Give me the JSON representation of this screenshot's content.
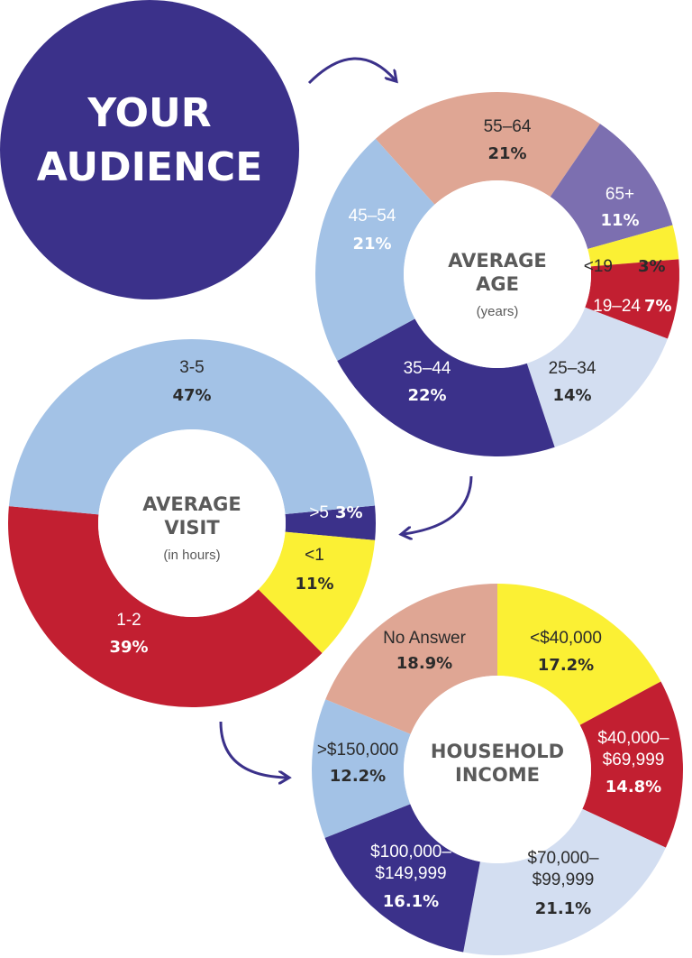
{
  "headline": {
    "line1": "YOUR",
    "line2": "AUDIENCE"
  },
  "colors": {
    "navy": "#3b318a",
    "lightblue": "#a3c2e6",
    "paleblue": "#d3def1",
    "salmon": "#dfa694",
    "purple": "#7c6fb0",
    "yellow": "#fbf034",
    "red": "#c21f31",
    "white": "#ffffff"
  },
  "chart_data": [
    {
      "type": "pie",
      "title": "AVERAGE AGE",
      "subtitle": "(years)",
      "unit": "%",
      "slices": [
        {
          "label": "55–64",
          "value": 21,
          "display": "21%",
          "color": "#dfa694",
          "text_color": "#2b2b2b",
          "pct_color": "#2b2b2b"
        },
        {
          "label": "65+",
          "value": 11,
          "display": "11%",
          "color": "#7c6fb0",
          "text_color": "#ffffff",
          "pct_color": "#ffffff"
        },
        {
          "label": "<19",
          "value": 3,
          "display": "3%",
          "color": "#fbf034",
          "text_color": "#2b2b2b",
          "pct_color": "#2b2b2b"
        },
        {
          "label": "19–24",
          "value": 7,
          "display": "7%",
          "color": "#c21f31",
          "text_color": "#ffffff",
          "pct_color": "#ffffff"
        },
        {
          "label": "25–34",
          "value": 14,
          "display": "14%",
          "color": "#d3def1",
          "text_color": "#2b2b2b",
          "pct_color": "#2b2b2b"
        },
        {
          "label": "35–44",
          "value": 22,
          "display": "22%",
          "color": "#3b318a",
          "text_color": "#ffffff",
          "pct_color": "#ffffff"
        },
        {
          "label": "45–54",
          "value": 21,
          "display": "21%",
          "color": "#a3c2e6",
          "text_color": "#ffffff",
          "pct_color": "#ffffff"
        }
      ]
    },
    {
      "type": "pie",
      "title": "AVERAGE VISIT",
      "subtitle": "(in hours)",
      "unit": "%",
      "slices": [
        {
          "label": ">5",
          "value": 3,
          "display": "3%",
          "color": "#3b318a",
          "text_color": "#ffffff",
          "pct_color": "#ffffff"
        },
        {
          "label": "<1",
          "value": 11,
          "display": "11%",
          "color": "#fbf034",
          "text_color": "#2b2b2b",
          "pct_color": "#2b2b2b"
        },
        {
          "label": "1-2",
          "value": 39,
          "display": "39%",
          "color": "#c21f31",
          "text_color": "#ffffff",
          "pct_color": "#ffffff"
        },
        {
          "label": "3-5",
          "value": 47,
          "display": "47%",
          "color": "#a3c2e6",
          "text_color": "#2b2b2b",
          "pct_color": "#2b2b2b"
        }
      ]
    },
    {
      "type": "pie",
      "title": "HOUSEHOLD INCOME",
      "subtitle": "",
      "unit": "%",
      "slices": [
        {
          "label": "<$40,000",
          "value": 17.2,
          "display": "17.2%",
          "color": "#fbf034",
          "text_color": "#2b2b2b",
          "pct_color": "#2b2b2b"
        },
        {
          "label": "$40,000–$69,999",
          "value": 14.8,
          "display": "14.8%",
          "color": "#c21f31",
          "text_color": "#ffffff",
          "pct_color": "#ffffff"
        },
        {
          "label": "$70,000–$99,999",
          "value": 21.1,
          "display": "21.1%",
          "color": "#d3def1",
          "text_color": "#2b2b2b",
          "pct_color": "#2b2b2b"
        },
        {
          "label": "$100,000–$149,999",
          "value": 16.1,
          "display": "16.1%",
          "color": "#3b318a",
          "text_color": "#ffffff",
          "pct_color": "#ffffff"
        },
        {
          "label": ">$150,000",
          "value": 12.2,
          "display": "12.2%",
          "color": "#a3c2e6",
          "text_color": "#2b2b2b",
          "pct_color": "#2b2b2b"
        },
        {
          "label": "No Answer",
          "value": 18.9,
          "display": "18.9%",
          "color": "#dfa694",
          "text_color": "#2b2b2b",
          "pct_color": "#2b2b2b"
        }
      ]
    }
  ]
}
